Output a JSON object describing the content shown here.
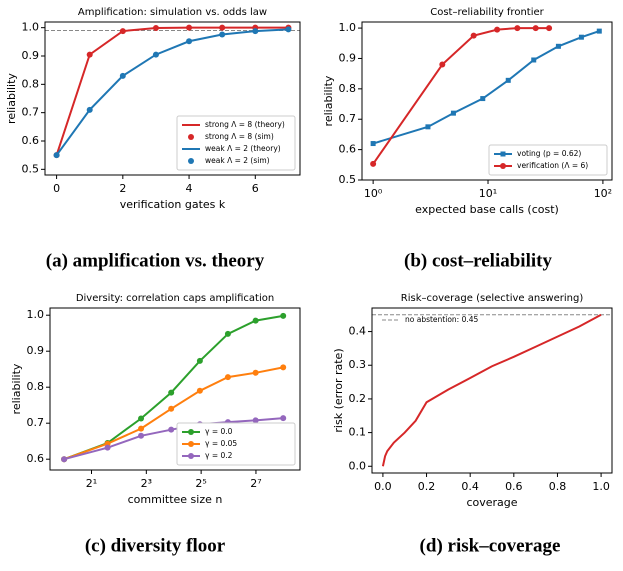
{
  "chart_data": [
    {
      "type": "line",
      "title": "Amplification: simulation vs. odds law",
      "caption": "(a) amplification vs. theory",
      "xlabel": "verification gates k",
      "ylabel": "reliability",
      "x": [
        0,
        1,
        2,
        3,
        4,
        5,
        6,
        7
      ],
      "series": [
        {
          "name": "strong Λ = 8 (theory)",
          "color": "#d62728",
          "line": true,
          "marker": null,
          "values": [
            0.55,
            0.905,
            0.988,
            0.999,
            1.0,
            1.0,
            1.0,
            1.0
          ]
        },
        {
          "name": "strong Λ = 8 (sim)",
          "color": "#d62728",
          "line": false,
          "marker": "o",
          "values": [
            0.55,
            0.905,
            0.988,
            0.999,
            1.0,
            1.0,
            1.0,
            1.0
          ]
        },
        {
          "name": "weak Λ = 2 (theory)",
          "color": "#1f77b4",
          "line": true,
          "marker": null,
          "values": [
            0.55,
            0.71,
            0.83,
            0.905,
            0.952,
            0.976,
            0.988,
            0.994
          ]
        },
        {
          "name": "weak Λ = 2 (sim)",
          "color": "#1f77b4",
          "line": false,
          "marker": "o",
          "values": [
            0.55,
            0.71,
            0.83,
            0.905,
            0.952,
            0.976,
            0.988,
            0.994
          ]
        }
      ],
      "hline": 0.99,
      "xlim": [
        -0.35,
        7.35
      ],
      "ylim": [
        0.48,
        1.02
      ],
      "xticks": [
        0,
        2,
        4,
        6
      ],
      "yticks": [
        0.5,
        0.6,
        0.7,
        0.8,
        0.9,
        {
          "value": 1,
          "label": "1.0"
        }
      ],
      "legend": "lower right"
    },
    {
      "type": "line",
      "title": "Cost–reliability frontier",
      "caption": "(b) cost–reliability",
      "xlabel": "expected base calls (cost)",
      "ylabel": "reliability",
      "xlog": 10,
      "series": [
        {
          "name": "voting (p = 0.62)",
          "color": "#1f77b4",
          "line": true,
          "marker": "s",
          "x": [
            1,
            3,
            5,
            9,
            15,
            25,
            41,
            65,
            93
          ],
          "values": [
            0.62,
            0.675,
            0.72,
            0.768,
            0.828,
            0.895,
            0.94,
            0.97,
            0.99
          ]
        },
        {
          "name": "verification (Λ = 6)",
          "color": "#d62728",
          "line": true,
          "marker": "o",
          "x": [
            1,
            4,
            7.5,
            12,
            18,
            26,
            34
          ],
          "values": [
            0.553,
            0.88,
            0.975,
            0.995,
            1.0,
            1.0,
            1.0
          ]
        }
      ],
      "xlim": [
        0.8,
        120
      ],
      "ylim": [
        0.5,
        1.02
      ],
      "xticks": [
        {
          "value": 1,
          "label": "10⁰"
        },
        {
          "value": 10,
          "label": "10¹"
        },
        {
          "value": 100,
          "label": "10²"
        }
      ],
      "yticks": [
        0.5,
        0.6,
        0.7,
        0.8,
        0.9,
        {
          "value": 1,
          "label": "1.0"
        }
      ],
      "legend": "lower right"
    },
    {
      "type": "line",
      "title": "Diversity: correlation caps amplification",
      "caption": "(c) diversity floor",
      "xlabel": "committee size n",
      "ylabel": "reliability",
      "xlog": 2,
      "x": [
        1,
        3,
        7,
        15,
        31,
        63,
        127,
        255
      ],
      "series": [
        {
          "name": "γ = 0.0",
          "color": "#2ca02c",
          "line": true,
          "marker": "o",
          "values": [
            0.6,
            0.645,
            0.713,
            0.785,
            0.873,
            0.948,
            0.985,
            0.998
          ]
        },
        {
          "name": "γ = 0.05",
          "color": "#ff7f0e",
          "line": true,
          "marker": "o",
          "values": [
            0.6,
            0.643,
            0.685,
            0.74,
            0.79,
            0.828,
            0.84,
            0.855
          ]
        },
        {
          "name": "γ = 0.2",
          "color": "#9467bd",
          "line": true,
          "marker": "o",
          "values": [
            0.6,
            0.632,
            0.665,
            0.682,
            0.697,
            0.703,
            0.708,
            0.714
          ]
        }
      ],
      "xlim": [
        0.7,
        390
      ],
      "ylim": [
        0.57,
        1.02
      ],
      "xticks": [
        {
          "value": 2,
          "label": "2¹"
        },
        {
          "value": 8,
          "label": "2³"
        },
        {
          "value": 32,
          "label": "2⁵"
        },
        {
          "value": 128,
          "label": "2⁷"
        }
      ],
      "yticks": [
        0.6,
        0.7,
        0.8,
        0.9,
        {
          "value": 1,
          "label": "1.0"
        }
      ],
      "legend": "lower right"
    },
    {
      "type": "line",
      "title": "Risk–coverage (selective answering)",
      "caption": "(d) risk–coverage",
      "xlabel": "coverage",
      "ylabel": "risk (error rate)",
      "x": [
        0.0,
        0.01,
        0.02,
        0.05,
        0.1,
        0.15,
        0.2,
        0.3,
        0.4,
        0.5,
        0.6,
        0.7,
        0.8,
        0.9,
        1.0
      ],
      "series": [
        {
          "name": null,
          "color": "#d62728",
          "line": true,
          "marker": null,
          "values": [
            0.0,
            0.03,
            0.045,
            0.07,
            0.1,
            0.135,
            0.19,
            0.228,
            0.262,
            0.297,
            0.325,
            0.355,
            0.385,
            0.415,
            0.45
          ]
        }
      ],
      "hline": {
        "value": 0.45,
        "label": "no abstention: 0.45"
      },
      "xlim": [
        -0.05,
        1.05
      ],
      "ylim": [
        -0.02,
        0.47
      ],
      "xticks": [
        {
          "value": 0,
          "label": "0.0"
        },
        0.2,
        0.4,
        0.6,
        0.8,
        {
          "value": 1,
          "label": "1.0"
        }
      ],
      "yticks": [
        {
          "value": 0,
          "label": "0.0"
        },
        0.1,
        0.2,
        0.3,
        0.4
      ],
      "legend": "upper left"
    }
  ]
}
